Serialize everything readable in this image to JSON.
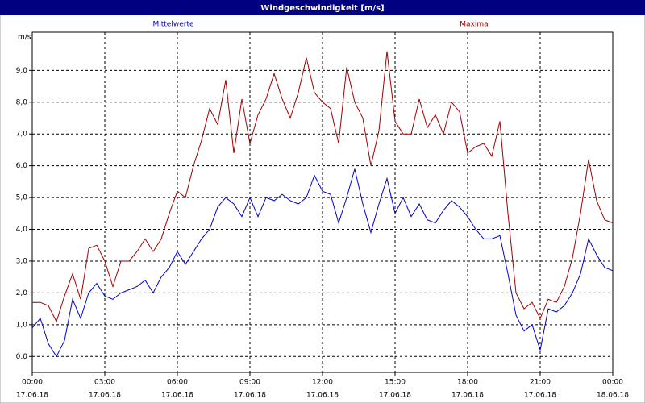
{
  "chart_data": {
    "type": "line",
    "title": "Windgeschwindigkeit [m/s]",
    "y_label": "m/s",
    "grid": true,
    "xlim": [
      0,
      1440
    ],
    "xticks": [
      {
        "value": 0,
        "label": "00:00"
      },
      {
        "value": 180,
        "label": "03:00"
      },
      {
        "value": 360,
        "label": "06:00"
      },
      {
        "value": 540,
        "label": "09:00"
      },
      {
        "value": 720,
        "label": "12:00"
      },
      {
        "value": 900,
        "label": "15:00"
      },
      {
        "value": 1080,
        "label": "18:00"
      },
      {
        "value": 1260,
        "label": "21:00"
      },
      {
        "value": 1440,
        "label": "00:00"
      }
    ],
    "xtick_dates": [
      "17.06.18",
      "17.06.18",
      "17.06.18",
      "17.06.18",
      "17.06.18",
      "17.06.18",
      "17.06.18",
      "17.06.18",
      "18.06.18"
    ],
    "ylim": [
      -0.5,
      10.2
    ],
    "yticks": [
      {
        "value": 0,
        "label": "0,0"
      },
      {
        "value": 1,
        "label": "1,0"
      },
      {
        "value": 2,
        "label": "2,0"
      },
      {
        "value": 3,
        "label": "3,0"
      },
      {
        "value": 4,
        "label": "4,0"
      },
      {
        "value": 5,
        "label": "5,0"
      },
      {
        "value": 6,
        "label": "6,0"
      },
      {
        "value": 7,
        "label": "7,0"
      },
      {
        "value": 8,
        "label": "8,0"
      },
      {
        "value": 9,
        "label": "9,0"
      }
    ],
    "x": [
      0,
      20,
      40,
      60,
      80,
      100,
      120,
      140,
      160,
      180,
      200,
      220,
      240,
      260,
      280,
      300,
      320,
      340,
      360,
      380,
      400,
      420,
      440,
      460,
      480,
      500,
      520,
      540,
      560,
      580,
      600,
      620,
      640,
      660,
      680,
      700,
      720,
      740,
      760,
      780,
      800,
      820,
      840,
      860,
      880,
      900,
      920,
      940,
      960,
      980,
      1000,
      1020,
      1040,
      1060,
      1080,
      1100,
      1120,
      1140,
      1160,
      1180,
      1200,
      1220,
      1240,
      1260,
      1280,
      1300,
      1320,
      1340,
      1360,
      1380,
      1400,
      1420,
      1440
    ],
    "series": [
      {
        "name": "Mittelwerte",
        "color": "#0000c8",
        "values": [
          0.9,
          1.2,
          0.4,
          0.0,
          0.5,
          1.8,
          1.2,
          2.0,
          2.3,
          1.9,
          1.8,
          2.0,
          2.1,
          2.2,
          2.4,
          2.0,
          2.5,
          2.8,
          3.3,
          2.9,
          3.3,
          3.7,
          4.0,
          4.7,
          5.0,
          4.8,
          4.4,
          5.0,
          4.4,
          5.0,
          4.9,
          5.1,
          4.9,
          4.8,
          5.0,
          5.7,
          5.2,
          5.1,
          4.2,
          5.0,
          5.9,
          4.8,
          3.9,
          4.8,
          5.6,
          4.5,
          5.0,
          4.4,
          4.8,
          4.3,
          4.2,
          4.6,
          4.9,
          4.7,
          4.4,
          4.0,
          3.7,
          3.7,
          3.8,
          2.6,
          1.3,
          0.8,
          1.0,
          0.2,
          1.5,
          1.4,
          1.6,
          2.0,
          2.6,
          3.7,
          3.2,
          2.8,
          2.7
        ]
      },
      {
        "name": "Maxima",
        "color": "#a00000",
        "values": [
          1.7,
          1.7,
          1.6,
          1.1,
          1.9,
          2.6,
          1.8,
          3.4,
          3.5,
          3.0,
          2.2,
          3.0,
          3.0,
          3.3,
          3.7,
          3.3,
          3.7,
          4.5,
          5.2,
          5.0,
          6.0,
          6.8,
          7.8,
          7.3,
          8.7,
          6.4,
          8.1,
          6.7,
          7.6,
          8.1,
          8.9,
          8.1,
          7.5,
          8.3,
          9.4,
          8.3,
          8.0,
          7.8,
          6.7,
          9.1,
          8.0,
          7.5,
          6.0,
          7.1,
          9.6,
          7.4,
          7.0,
          7.0,
          8.1,
          7.2,
          7.6,
          7.0,
          8.0,
          7.7,
          6.4,
          6.6,
          6.7,
          6.3,
          7.4,
          4.5,
          2.0,
          1.5,
          1.7,
          1.2,
          1.8,
          1.7,
          2.2,
          3.1,
          4.5,
          6.2,
          4.9,
          4.3,
          4.2
        ]
      }
    ]
  }
}
